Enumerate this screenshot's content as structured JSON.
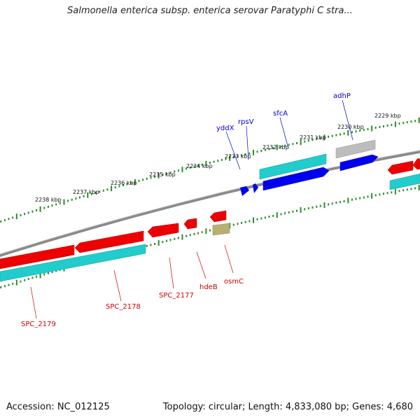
{
  "title": "Salmonella enterica subsp. enterica serovar Paratyphi C stra...",
  "footer": {
    "accession": "Accession: NC_012125",
    "summary": "Topology: circular; Length: 4,833,080 bp; Genes: 4,680"
  },
  "colors": {
    "backbone": "#8a8a8a",
    "ticks": "#2e8b2e",
    "forward_gene": "#0000ee",
    "reverse_gene": "#ee0000",
    "cds_cyan": "#22cccc",
    "gray_feature": "#bdbdbd",
    "olive_feature": "#b8b070",
    "forward_label": "#0000cc",
    "reverse_label": "#cc0000"
  },
  "kbp_labels": [
    "2238 kbp",
    "2237 kbp",
    "2236 kbp",
    "2235 kbp",
    "2234 kbp",
    "2233 kbp",
    "2232 kbp",
    "2231 kbp",
    "2230 kbp",
    "2229 kbp"
  ],
  "forward_genes": [
    "yddX",
    "rpsV",
    "sfcA",
    "adhP"
  ],
  "reverse_genes": [
    "SPC_2179",
    "SPC_2178",
    "SPC_2177",
    "hdeB",
    "osmC"
  ]
}
